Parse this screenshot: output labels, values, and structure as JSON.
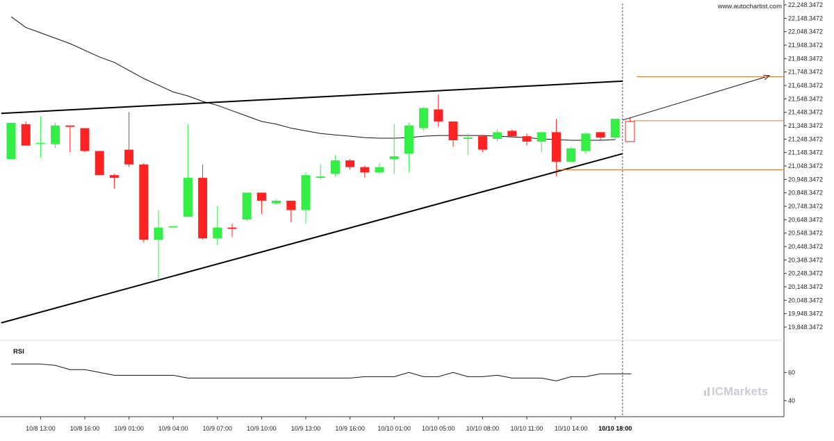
{
  "header": {
    "site": "www.autochartist.com"
  },
  "brand": {
    "name": "ICMarkets",
    "color": "#c9cdd1"
  },
  "colors": {
    "bull": "#33ee44",
    "bear": "#ff2222",
    "wick": "#333333",
    "level": "#e07a3a",
    "line": "#000000"
  },
  "chart_data": {
    "type": "candlestick",
    "y_ticks": [
      "22,248.3472",
      "22,148.3472",
      "22,048.3472",
      "21,948.3472",
      "21,848.3472",
      "21,748.3472",
      "21,648.3472",
      "21,548.3472",
      "21,448.3472",
      "21,348.3472",
      "21,248.3472",
      "21,148.3472",
      "21,048.3472",
      "20,948.3472",
      "20,848.3472",
      "20,748.3472",
      "20,648.3472",
      "20,548.3472",
      "20,448.3472",
      "20,348.3472",
      "20,248.3472",
      "20,148.3472",
      "20,048.3472",
      "19,948.3472",
      "19,848.3472"
    ],
    "ylim": [
      19848.3472,
      22248.3472
    ],
    "x_ticks": [
      {
        "label": "10/8 13:00",
        "bar": 2
      },
      {
        "label": "10/8 16:00",
        "bar": 5
      },
      {
        "label": "10/9 01:00",
        "bar": 8
      },
      {
        "label": "10/9 04:00",
        "bar": 11
      },
      {
        "label": "10/9 07:00",
        "bar": 14
      },
      {
        "label": "10/9 10:00",
        "bar": 17
      },
      {
        "label": "10/9 13:00",
        "bar": 20
      },
      {
        "label": "10/9 16:00",
        "bar": 23
      },
      {
        "label": "10/10 01:00",
        "bar": 26
      },
      {
        "label": "10/10 05:00",
        "bar": 29
      },
      {
        "label": "10/10 08:00",
        "bar": 32
      },
      {
        "label": "10/10 11:00",
        "bar": 35
      },
      {
        "label": "10/10 14:00",
        "bar": 38
      },
      {
        "label": "10/10 18:00",
        "bar": 41,
        "highlight": true
      }
    ],
    "candles": [
      {
        "o": 21100,
        "h": 21370,
        "l": 21100,
        "c": 21370
      },
      {
        "o": 21360,
        "h": 21380,
        "l": 21200,
        "c": 21200
      },
      {
        "o": 21220,
        "h": 21420,
        "l": 21110,
        "c": 21220
      },
      {
        "o": 21210,
        "h": 21370,
        "l": 21180,
        "c": 21350
      },
      {
        "o": 21350,
        "h": 21350,
        "l": 21150,
        "c": 21340
      },
      {
        "o": 21330,
        "h": 21330,
        "l": 21150,
        "c": 21160
      },
      {
        "o": 21160,
        "h": 21160,
        "l": 20980,
        "c": 20980
      },
      {
        "o": 20980,
        "h": 20990,
        "l": 20880,
        "c": 20960
      },
      {
        "o": 21170,
        "h": 21450,
        "l": 21040,
        "c": 21060
      },
      {
        "o": 21060,
        "h": 21070,
        "l": 20480,
        "c": 20500
      },
      {
        "o": 20500,
        "h": 20720,
        "l": 20210,
        "c": 20590
      },
      {
        "o": 20590,
        "h": 20590,
        "l": 20590,
        "c": 20600
      },
      {
        "o": 20670,
        "h": 21360,
        "l": 20670,
        "c": 20960
      },
      {
        "o": 20960,
        "h": 21060,
        "l": 20500,
        "c": 20510
      },
      {
        "o": 20510,
        "h": 20750,
        "l": 20460,
        "c": 20590
      },
      {
        "o": 20590,
        "h": 20620,
        "l": 20520,
        "c": 20580
      },
      {
        "o": 20650,
        "h": 20850,
        "l": 20640,
        "c": 20850
      },
      {
        "o": 20850,
        "h": 20850,
        "l": 20690,
        "c": 20790
      },
      {
        "o": 20770,
        "h": 20800,
        "l": 20760,
        "c": 20790
      },
      {
        "o": 20790,
        "h": 20790,
        "l": 20630,
        "c": 20720
      },
      {
        "o": 20720,
        "h": 21000,
        "l": 20620,
        "c": 20980
      },
      {
        "o": 20960,
        "h": 21060,
        "l": 20950,
        "c": 20970
      },
      {
        "o": 20990,
        "h": 21130,
        "l": 20970,
        "c": 21090
      },
      {
        "o": 21090,
        "h": 21100,
        "l": 21020,
        "c": 21040
      },
      {
        "o": 21040,
        "h": 21050,
        "l": 20960,
        "c": 21000
      },
      {
        "o": 21000,
        "h": 21070,
        "l": 20990,
        "c": 21040
      },
      {
        "o": 21100,
        "h": 21360,
        "l": 20990,
        "c": 21120
      },
      {
        "o": 21140,
        "h": 21370,
        "l": 21000,
        "c": 21350
      },
      {
        "o": 21330,
        "h": 21490,
        "l": 21310,
        "c": 21480
      },
      {
        "o": 21470,
        "h": 21580,
        "l": 21340,
        "c": 21380
      },
      {
        "o": 21380,
        "h": 21370,
        "l": 21190,
        "c": 21240
      },
      {
        "o": 21250,
        "h": 21290,
        "l": 21130,
        "c": 21260
      },
      {
        "o": 21270,
        "h": 21280,
        "l": 21150,
        "c": 21170
      },
      {
        "o": 21250,
        "h": 21320,
        "l": 21230,
        "c": 21300
      },
      {
        "o": 21310,
        "h": 21320,
        "l": 21260,
        "c": 21270
      },
      {
        "o": 21270,
        "h": 21290,
        "l": 21200,
        "c": 21230
      },
      {
        "o": 21230,
        "h": 21300,
        "l": 21150,
        "c": 21300
      },
      {
        "o": 21300,
        "h": 21400,
        "l": 20970,
        "c": 21080
      },
      {
        "o": 21080,
        "h": 21190,
        "l": 21080,
        "c": 21180
      },
      {
        "o": 21160,
        "h": 21300,
        "l": 21140,
        "c": 21290
      },
      {
        "o": 21300,
        "h": 21300,
        "l": 21240,
        "c": 21260
      },
      {
        "o": 21260,
        "h": 21400,
        "l": 21240,
        "c": 21400
      }
    ],
    "current_bar": {
      "o": 21380,
      "h": 21410,
      "l": 21230,
      "c": 21230
    },
    "levels": {
      "upper": 21713,
      "current": 21385,
      "lower": 21020
    },
    "trendlines": {
      "resistance": {
        "start": {
          "bar": -1,
          "value": 21440
        },
        "end": {
          "bar": 41,
          "value": 21680
        }
      },
      "support": {
        "start": {
          "bar": -1,
          "value": 19880
        },
        "end": {
          "bar": 41,
          "value": 21140
        }
      },
      "projection": {
        "start": {
          "bar": 41,
          "value": 21390
        },
        "end": {
          "bar": 51,
          "value": 21720
        }
      }
    },
    "moving_average": [
      22160,
      22080,
      22040,
      22000,
      21960,
      21910,
      21860,
      21820,
      21760,
      21700,
      21650,
      21600,
      21570,
      21530,
      21500,
      21460,
      21420,
      21380,
      21360,
      21330,
      21310,
      21290,
      21280,
      21270,
      21260,
      21255,
      21255,
      21260,
      21270,
      21275,
      21275,
      21275,
      21275,
      21270,
      21265,
      21260,
      21250,
      21245,
      21240,
      21240,
      21240,
      21245
    ],
    "rsi": {
      "title": "RSI",
      "ticks": [
        "60",
        "40"
      ],
      "ylim": [
        36,
        68
      ],
      "values": [
        66,
        66,
        66,
        65,
        62,
        62,
        60,
        58,
        58,
        58,
        58,
        58,
        56,
        56,
        56,
        56,
        56,
        56,
        56,
        56,
        56,
        56,
        56,
        56,
        57,
        57,
        57,
        60,
        57,
        57,
        60,
        57,
        57,
        58,
        56,
        56,
        56,
        54,
        57,
        57,
        59,
        59
      ]
    }
  }
}
